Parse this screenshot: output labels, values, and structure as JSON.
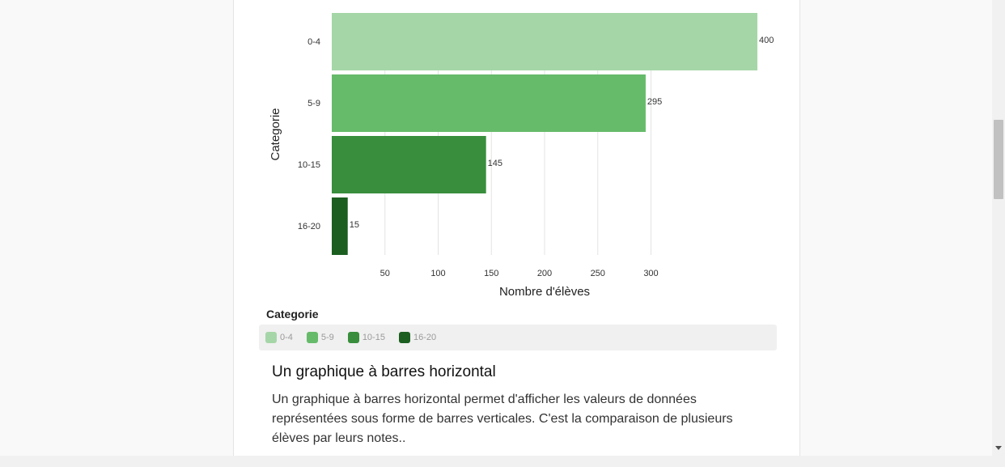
{
  "chart_data": {
    "type": "bar",
    "orientation": "horizontal",
    "categories": [
      "0-4",
      "5-9",
      "10-15",
      "16-20"
    ],
    "values": [
      400,
      295,
      145,
      15
    ],
    "colors": [
      "#a5d6a7",
      "#66bb6a",
      "#388e3c",
      "#1b5e20"
    ],
    "xlabel": "Nombre d'élèves",
    "ylabel": "Categorie",
    "xticks": [
      50,
      100,
      150,
      200,
      250,
      300
    ],
    "xlim": [
      0,
      400
    ],
    "grid": "vertical",
    "legend": {
      "title": "Categorie",
      "placement": "bottom",
      "items": [
        "0-4",
        "5-9",
        "10-15",
        "16-20"
      ]
    }
  },
  "section": {
    "heading": "Un graphique à barres horizontal",
    "description": "Un graphique à barres horizontal permet d'afficher les valeurs de données représentées sous forme de barres verticales. C'est la comparaison de plusieurs élèves par leurs notes.."
  }
}
